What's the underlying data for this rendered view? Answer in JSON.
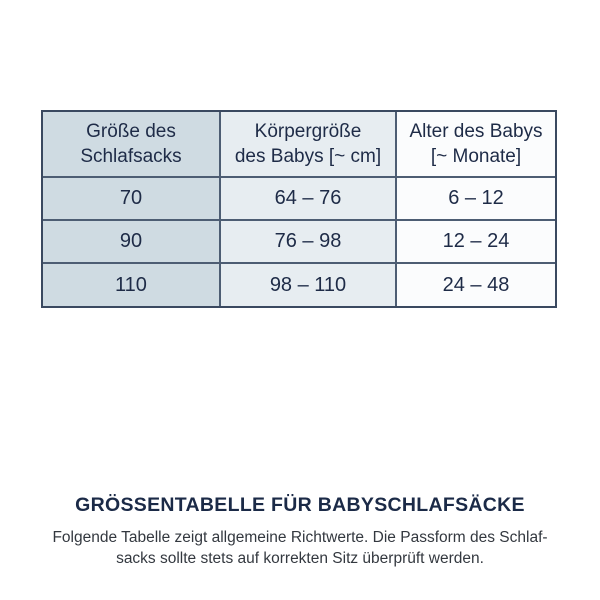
{
  "colors": {
    "background": "#ffffff",
    "border_outer": "#3a4960",
    "border_inner": "#4d5d73",
    "column1_bg": "#cfdbe2",
    "column2_bg": "#e7edf1",
    "column3_bg": "#fbfcfd",
    "table_text": "#1e2b47",
    "title_text": "#1b2a47",
    "caption_text": "#33383f"
  },
  "table": {
    "headers": [
      {
        "line1": "Größe des",
        "line2": "Schlafsacks"
      },
      {
        "line1": "Körpergröße",
        "line2": "des Babys [~ cm]"
      },
      {
        "line1": "Alter des Babys",
        "line2": "[~ Monate]"
      }
    ],
    "rows": [
      {
        "size": "70",
        "height": "64 – 76",
        "age": "6 – 12"
      },
      {
        "size": "90",
        "height": "76 – 98",
        "age": "12 – 24"
      },
      {
        "size": "110",
        "height": "98 – 110",
        "age": "24 – 48"
      }
    ]
  },
  "footer": {
    "title": "GRÖSSENTABELLE FÜR BABYSCHLAFSÄCKE",
    "caption_line1": "Folgende Tabelle zeigt allgemeine Richtwerte. Die Passform des Schlaf-",
    "caption_line2": "sacks sollte stets auf korrekten Sitz überprüft werden."
  },
  "chart_data": {
    "type": "table",
    "title": "GRÖSSENTABELLE FÜR BABYSCHLAFSÄCKE",
    "columns": [
      "Größe des Schlafsacks",
      "Körpergröße des Babys [~ cm]",
      "Alter des Babys [~ Monate]"
    ],
    "rows": [
      [
        "70",
        "64 – 76",
        "6 – 12"
      ],
      [
        "90",
        "76 – 98",
        "12 – 24"
      ],
      [
        "110",
        "98 – 110",
        "24 – 48"
      ]
    ],
    "notes": "Folgende Tabelle zeigt allgemeine Richtwerte. Die Passform des Schlafsacks sollte stets auf korrekten Sitz überprüft werden."
  }
}
